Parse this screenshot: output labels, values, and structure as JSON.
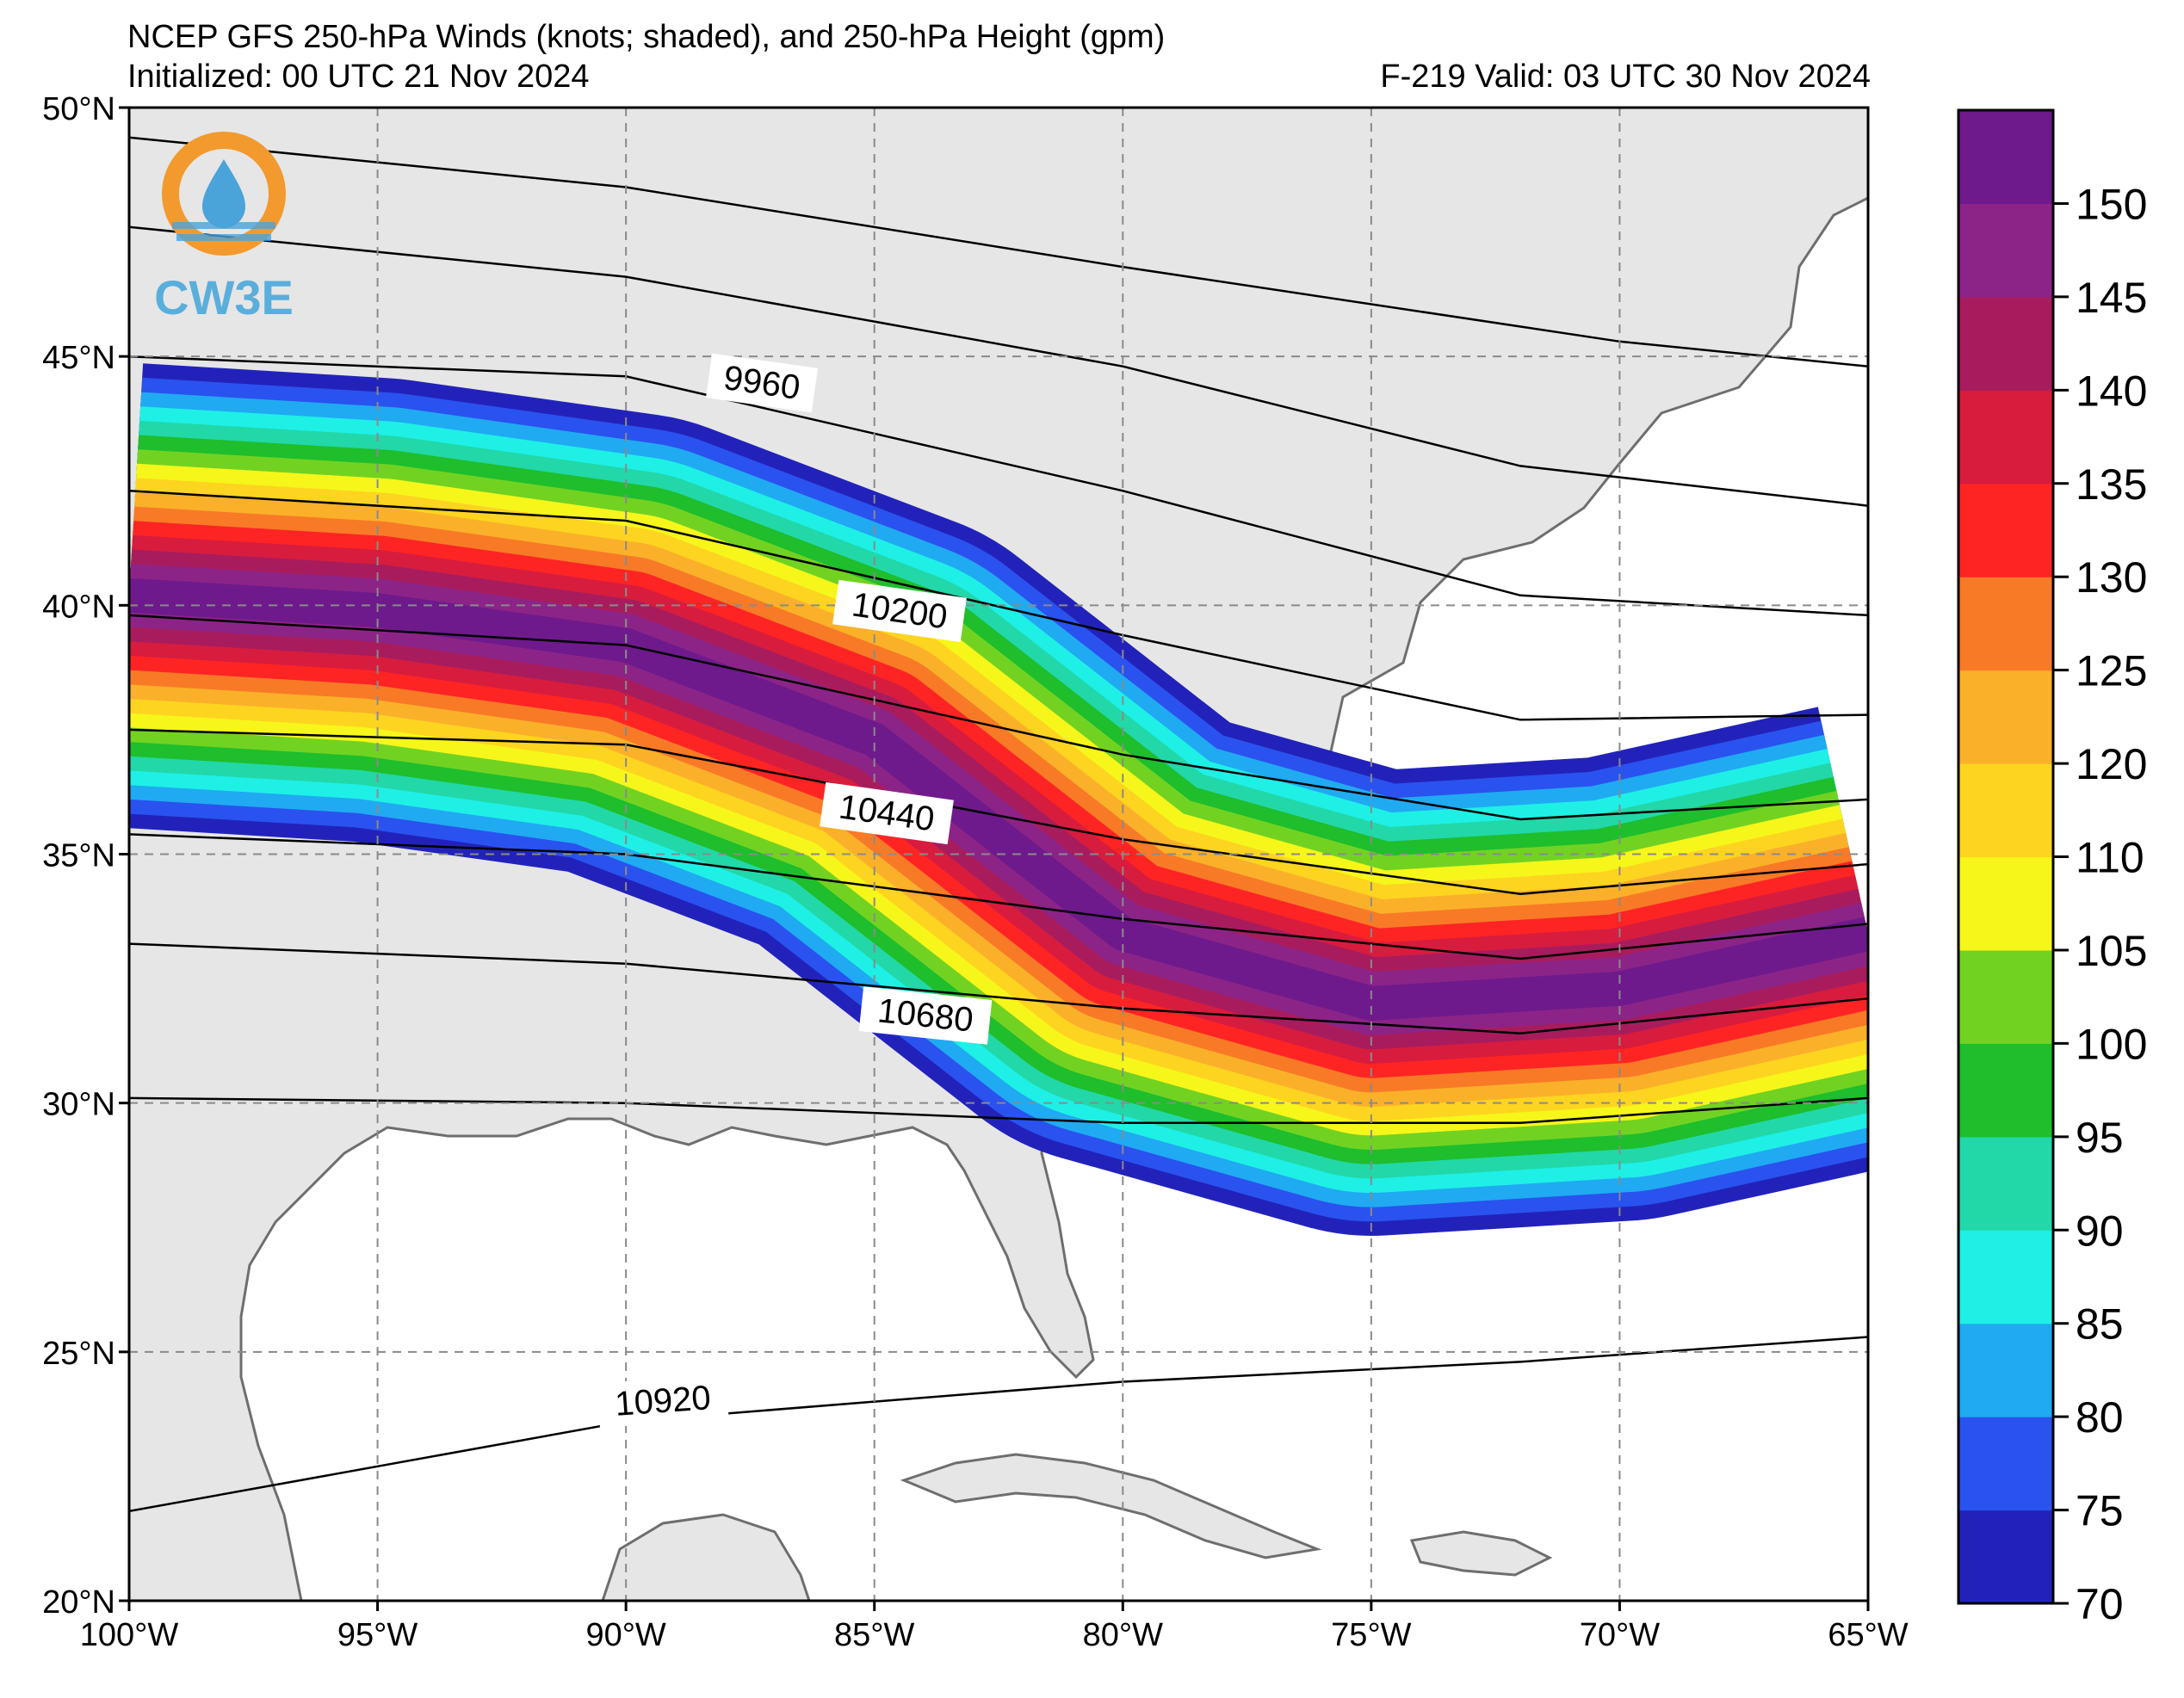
{
  "header": {
    "title": "NCEP GFS 250-hPa Winds (knots; shaded), and 250-hPa Height (gpm)",
    "initialized": "Initialized: 00 UTC 21 Nov 2024",
    "valid": "F-219  Valid: 03 UTC 30 Nov 2024"
  },
  "logo": {
    "text": "CW3E",
    "colors": {
      "ring": "#f29a2e",
      "drop": "#4aa3d9",
      "text": "#5aaedc"
    }
  },
  "map": {
    "lat_labels": [
      "50°N",
      "45°N",
      "40°N",
      "35°N",
      "30°N",
      "25°N",
      "20°N"
    ],
    "lat_values": [
      50,
      45,
      40,
      35,
      30,
      25,
      20
    ],
    "lon_labels": [
      "100°W",
      "95°W",
      "90°W",
      "85°W",
      "80°W",
      "75°W",
      "70°W",
      "65°W"
    ],
    "lon_values": [
      -100,
      -95,
      -90,
      -85,
      -80,
      -75,
      -70,
      -65
    ],
    "height_contours": [
      {
        "label": "9960",
        "value": 9960
      },
      {
        "label": "10200",
        "value": 10200
      },
      {
        "label": "10440",
        "value": 10440
      },
      {
        "label": "10680",
        "value": 10680
      },
      {
        "label": "10920",
        "value": 10920
      }
    ],
    "jet_core_axis": [
      [
        -100,
        40.2
      ],
      [
        -95,
        39.9
      ],
      [
        -90,
        39.2
      ],
      [
        -85,
        37.3
      ],
      [
        -80,
        33.4
      ],
      [
        -75,
        32.0
      ],
      [
        -70,
        32.3
      ],
      [
        -65,
        33.4
      ]
    ]
  },
  "colorbar": {
    "ticks": [
      "70",
      "75",
      "80",
      "85",
      "90",
      "95",
      "100",
      "105",
      "110",
      "120",
      "125",
      "130",
      "135",
      "140",
      "145",
      "150"
    ],
    "colors": [
      "#2222bb",
      "#2a52ee",
      "#20aaf2",
      "#1ef0e6",
      "#22d8a8",
      "#1ebe2c",
      "#72d222",
      "#f6f61a",
      "#fdd420",
      "#fbb02a",
      "#f87a26",
      "#fe2424",
      "#d81c3e",
      "#a81c5e",
      "#8c2488",
      "#6e1a8c"
    ]
  }
}
